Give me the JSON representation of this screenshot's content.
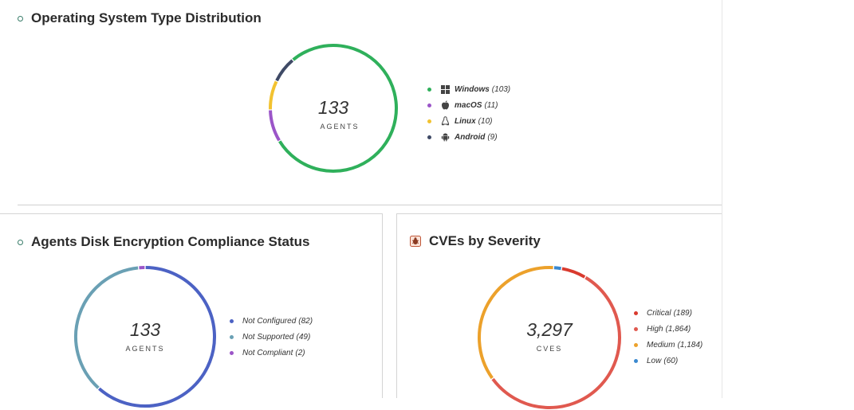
{
  "os_panel": {
    "title": "Operating System Type Distribution",
    "center_value": "133",
    "center_label": "AGENTS",
    "legend": [
      {
        "label": "Windows",
        "count": "(103)",
        "value": 103,
        "color": "#2fb05b",
        "icon": "windows-icon"
      },
      {
        "label": "macOS",
        "count": "(11)",
        "value": 11,
        "color": "#9b55c8",
        "icon": "apple-icon"
      },
      {
        "label": "Linux",
        "count": "(10)",
        "value": 10,
        "color": "#f2c230",
        "icon": "linux-icon"
      },
      {
        "label": "Android",
        "count": "(9)",
        "value": 9,
        "color": "#3f4a66",
        "icon": "android-icon"
      }
    ]
  },
  "encryption_panel": {
    "title": "Agents Disk Encryption Compliance Status",
    "center_value": "133",
    "center_label": "AGENTS",
    "legend": [
      {
        "label": "Not Configured",
        "count": "(82)",
        "value": 82,
        "color": "#4c62c4"
      },
      {
        "label": "Not Supported",
        "count": "(49)",
        "value": 49,
        "color": "#6aa0b4"
      },
      {
        "label": "Not Compliant",
        "count": "(2)",
        "value": 2,
        "color": "#9b55c8"
      }
    ]
  },
  "cve_panel": {
    "title": "CVEs by Severity",
    "center_value": "3,297",
    "center_label": "CVES",
    "legend": [
      {
        "label": "Critical",
        "count": "(189)",
        "value": 189,
        "color": "#d93a2e"
      },
      {
        "label": "High",
        "count": "(1,864)",
        "value": 1864,
        "color": "#e0594f"
      },
      {
        "label": "Medium",
        "count": "(1,184)",
        "value": 1184,
        "color": "#eca12b"
      },
      {
        "label": "Low",
        "count": "(60)",
        "value": 60,
        "color": "#3a89d0"
      }
    ]
  }
}
